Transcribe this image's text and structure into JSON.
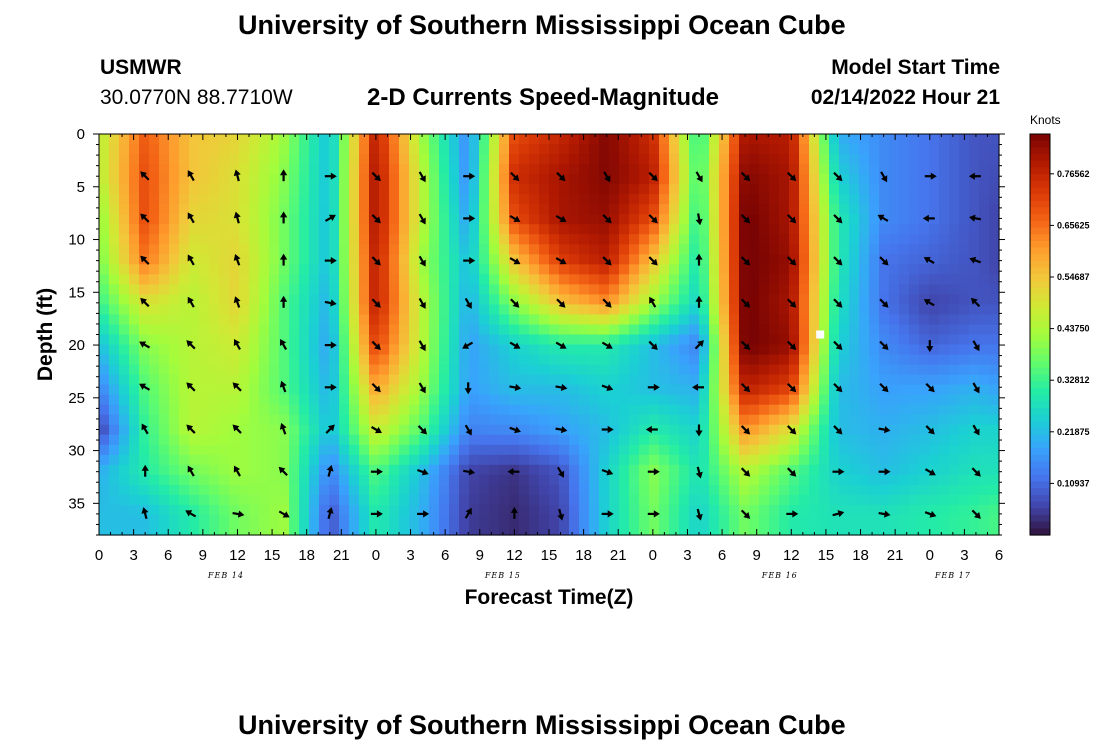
{
  "header": {
    "title": "University of Southern Mississippi Ocean Cube",
    "station": "USMWR",
    "coords": "30.0770N  88.7710W",
    "product": "2-D Currents Speed-Magnitude",
    "model_label": "Model Start Time",
    "model_time": "02/14/2022 Hour 21"
  },
  "footer": {
    "title": "University of Southern Mississippi Ocean Cube"
  },
  "colors": {
    "palette": [
      "#30123b",
      "#4145ab",
      "#4675ed",
      "#39a2fc",
      "#1bcfd4",
      "#24eca6",
      "#61fc6c",
      "#a4fc3b",
      "#d1e834",
      "#f3c63a",
      "#fe9b2d",
      "#f36315",
      "#d93806",
      "#b11901",
      "#7a0403"
    ],
    "arrow": "#000000",
    "marker": "#ffffff"
  },
  "chart_data": {
    "type": "heatmap",
    "title": "2-D Currents Speed-Magnitude",
    "xlabel": "Forecast Time(Z)",
    "ylabel": "Depth (ft)",
    "x_hours_since_feb14_00z": [
      0,
      78
    ],
    "ylim": [
      0,
      38
    ],
    "xticks": [
      "0",
      "3",
      "6",
      "9",
      "12",
      "15",
      "18",
      "21",
      "0",
      "3",
      "6",
      "9",
      "12",
      "15",
      "18",
      "21",
      "0",
      "3",
      "6",
      "9",
      "12",
      "15",
      "18",
      "21",
      "0",
      "3",
      "6"
    ],
    "yticks": [
      0,
      5,
      10,
      15,
      20,
      25,
      30,
      35
    ],
    "date_labels": [
      {
        "label": "FEB 14",
        "hour": 11
      },
      {
        "label": "FEB 15",
        "hour": 35
      },
      {
        "label": "FEB 16",
        "hour": 59
      },
      {
        "label": "FEB 17",
        "hour": 74
      }
    ],
    "colorbar": {
      "unit": "Knots",
      "range": [
        0.0,
        0.85
      ],
      "tick_labels": [
        "0.76562",
        "0.65625",
        "0.54687",
        "0.43750",
        "0.32812",
        "0.21875",
        "0.10937"
      ],
      "tick_values": [
        0.76562,
        0.65625,
        0.54687,
        0.4375,
        0.32812,
        0.21875,
        0.10937
      ]
    },
    "speed_knots_rows": {
      "depth_ft": [
        0,
        4,
        8,
        12,
        16,
        20,
        24,
        28,
        32,
        36
      ],
      "hours": [
        0,
        4,
        8,
        12,
        16,
        20,
        24,
        28,
        32,
        36,
        40,
        44,
        48,
        52,
        56,
        60,
        64,
        68,
        72,
        76,
        78
      ],
      "values": [
        [
          0.45,
          0.68,
          0.55,
          0.52,
          0.42,
          0.22,
          0.78,
          0.42,
          0.15,
          0.7,
          0.76,
          0.84,
          0.75,
          0.3,
          0.8,
          0.78,
          0.2,
          0.15,
          0.12,
          0.08,
          0.08
        ],
        [
          0.45,
          0.7,
          0.55,
          0.5,
          0.4,
          0.22,
          0.8,
          0.45,
          0.15,
          0.75,
          0.8,
          0.84,
          0.78,
          0.32,
          0.84,
          0.8,
          0.25,
          0.15,
          0.12,
          0.08,
          0.07
        ],
        [
          0.4,
          0.7,
          0.52,
          0.5,
          0.38,
          0.22,
          0.8,
          0.45,
          0.18,
          0.7,
          0.8,
          0.82,
          0.7,
          0.3,
          0.86,
          0.8,
          0.3,
          0.15,
          0.12,
          0.08,
          0.06
        ],
        [
          0.38,
          0.65,
          0.48,
          0.52,
          0.38,
          0.22,
          0.78,
          0.42,
          0.22,
          0.55,
          0.72,
          0.78,
          0.55,
          0.28,
          0.86,
          0.82,
          0.3,
          0.12,
          0.1,
          0.08,
          0.06
        ],
        [
          0.32,
          0.5,
          0.45,
          0.52,
          0.35,
          0.2,
          0.78,
          0.45,
          0.2,
          0.4,
          0.55,
          0.62,
          0.42,
          0.25,
          0.86,
          0.8,
          0.28,
          0.12,
          0.06,
          0.08,
          0.08
        ],
        [
          0.22,
          0.4,
          0.45,
          0.48,
          0.35,
          0.18,
          0.72,
          0.45,
          0.18,
          0.25,
          0.3,
          0.3,
          0.22,
          0.14,
          0.86,
          0.82,
          0.25,
          0.15,
          0.1,
          0.12,
          0.12
        ],
        [
          0.14,
          0.35,
          0.45,
          0.45,
          0.35,
          0.2,
          0.6,
          0.42,
          0.18,
          0.22,
          0.22,
          0.25,
          0.22,
          0.2,
          0.78,
          0.72,
          0.22,
          0.18,
          0.18,
          0.2,
          0.18
        ],
        [
          0.06,
          0.32,
          0.45,
          0.42,
          0.4,
          0.22,
          0.48,
          0.35,
          0.14,
          0.15,
          0.18,
          0.22,
          0.3,
          0.25,
          0.62,
          0.5,
          0.22,
          0.2,
          0.22,
          0.25,
          0.25
        ],
        [
          0.2,
          0.3,
          0.38,
          0.42,
          0.4,
          0.14,
          0.35,
          0.22,
          0.06,
          0.04,
          0.08,
          0.25,
          0.4,
          0.28,
          0.45,
          0.35,
          0.25,
          0.22,
          0.25,
          0.28,
          0.28
        ],
        [
          0.22,
          0.22,
          0.3,
          0.38,
          0.42,
          0.08,
          0.3,
          0.2,
          0.05,
          0.03,
          0.06,
          0.25,
          0.38,
          0.25,
          0.38,
          0.3,
          0.28,
          0.28,
          0.3,
          0.32,
          0.34
        ]
      ]
    },
    "arrow_field": {
      "hours": [
        4,
        8,
        12,
        16,
        20,
        24,
        28,
        32,
        36,
        40,
        44,
        48,
        52,
        56,
        60,
        64,
        68,
        72,
        76
      ],
      "depth_ft": [
        4,
        8,
        12,
        16,
        20,
        24,
        28,
        32,
        36
      ],
      "directions_deg_clockwise_from_up": [
        [
          -45,
          -30,
          -15,
          0,
          90,
          135,
          150,
          90,
          135,
          135,
          150,
          135,
          150,
          135,
          135,
          135,
          150,
          90,
          -90
        ],
        [
          -45,
          -30,
          -15,
          0,
          60,
          135,
          150,
          90,
          120,
          120,
          135,
          135,
          170,
          135,
          135,
          135,
          -60,
          -90,
          -80
        ],
        [
          -45,
          -30,
          -20,
          0,
          90,
          135,
          150,
          90,
          120,
          120,
          135,
          135,
          0,
          135,
          135,
          135,
          135,
          -60,
          -70
        ],
        [
          -45,
          -30,
          -20,
          0,
          100,
          135,
          150,
          150,
          135,
          135,
          135,
          -30,
          0,
          135,
          135,
          135,
          135,
          -60,
          -45
        ],
        [
          -60,
          -45,
          -30,
          -30,
          90,
          135,
          150,
          -120,
          120,
          120,
          120,
          135,
          45,
          135,
          135,
          135,
          135,
          180,
          150
        ],
        [
          -60,
          -45,
          -45,
          -20,
          90,
          135,
          150,
          180,
          100,
          100,
          110,
          90,
          -90,
          135,
          135,
          135,
          135,
          135,
          150
        ],
        [
          -30,
          -45,
          -45,
          -20,
          45,
          120,
          135,
          150,
          110,
          100,
          90,
          -90,
          180,
          135,
          135,
          135,
          100,
          135,
          150
        ],
        [
          0,
          -30,
          -30,
          -45,
          15,
          90,
          110,
          100,
          -90,
          150,
          110,
          90,
          165,
          135,
          135,
          90,
          90,
          120,
          135
        ],
        [
          -15,
          -60,
          100,
          120,
          15,
          90,
          90,
          30,
          0,
          165,
          90,
          90,
          165,
          135,
          90,
          75,
          100,
          110,
          135
        ]
      ]
    },
    "marker": {
      "hour": 62.5,
      "depth_ft": 19
    }
  }
}
